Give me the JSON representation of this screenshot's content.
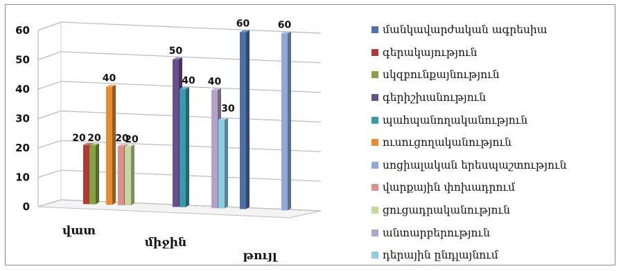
{
  "chart_data": {
    "type": "bar",
    "title": "",
    "xlabel": "",
    "ylabel": "",
    "ylim": [
      0,
      60
    ],
    "yticks": [
      0,
      10,
      20,
      30,
      40,
      50,
      60
    ],
    "grid": true,
    "legend_position": "right",
    "categories": [
      "վատ",
      "միջին",
      "թույլ"
    ],
    "series": [
      {
        "name": "մանկավարժական ագրեսիա",
        "color": "#4f6fa8",
        "values": [
          null,
          null,
          60
        ]
      },
      {
        "name": "գերակայություն",
        "color": "#b23a36",
        "values": [
          20,
          null,
          null
        ]
      },
      {
        "name": "սկզբունքայնություն",
        "color": "#82a444",
        "values": [
          20,
          null,
          null
        ]
      },
      {
        "name": "գերիշխանություն",
        "color": "#6a4f8c",
        "values": [
          null,
          50,
          null
        ]
      },
      {
        "name": "պահպանողականություն",
        "color": "#3a9aad",
        "values": [
          null,
          40,
          null
        ]
      },
      {
        "name": "ուսուցողականություն",
        "color": "#e88c32",
        "values": [
          40,
          null,
          null
        ]
      },
      {
        "name": "սոցիալական երեսպաշտություն",
        "color": "#8fa9d9",
        "values": [
          null,
          null,
          60
        ]
      },
      {
        "name": "վարքային փոխադրում",
        "color": "#dd8f8c",
        "values": [
          20,
          null,
          null
        ]
      },
      {
        "name": "ցուցադրականություն",
        "color": "#c3d89b",
        "values": [
          20,
          null,
          null
        ]
      },
      {
        "name": "անտարբերություն",
        "color": "#b3a2c9",
        "values": [
          null,
          40,
          null
        ]
      },
      {
        "name": "դերային ընդլայնում",
        "color": "#8ccbe0",
        "values": [
          null,
          30,
          null
        ]
      }
    ]
  }
}
